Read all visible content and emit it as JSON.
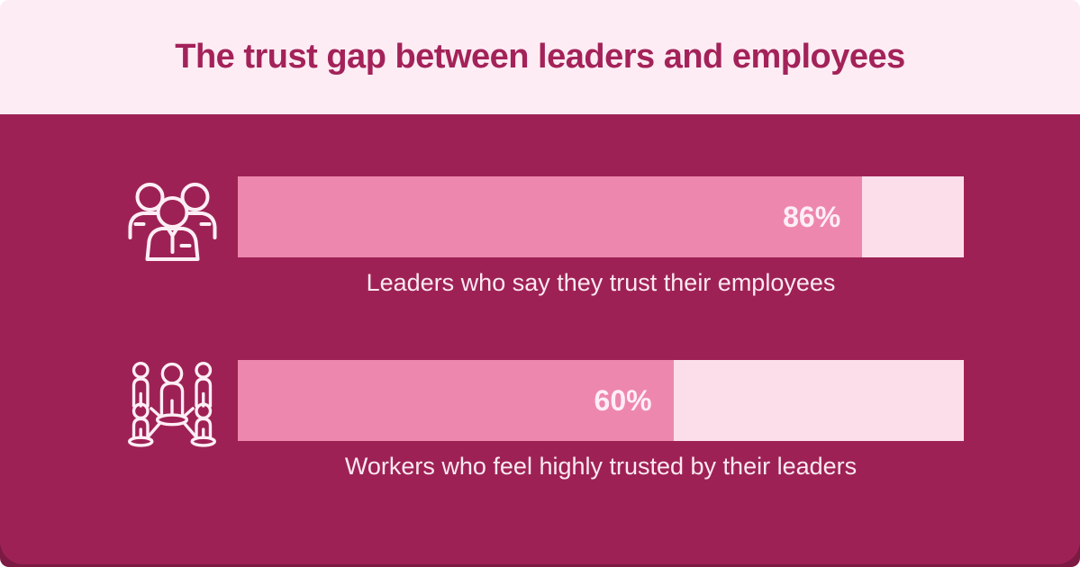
{
  "header": {
    "title": "The trust gap between leaders and employees"
  },
  "colors": {
    "header_bg": "#fdecf3",
    "panel_bg": "#9e2155",
    "title_color": "#a32259",
    "bar_fill": "#ee87ad",
    "bar_track": "#fbdeea",
    "value_text": "#fdeef5",
    "caption_text": "#fbe9f1",
    "icon_stroke": "#fdeef5",
    "bottom_strip": "#7c1a44"
  },
  "chart_data": {
    "type": "bar",
    "orientation": "horizontal",
    "title": "The trust gap between leaders and employees",
    "categories": [
      "Leaders who say they trust their employees",
      "Workers who feel highly trusted by their leaders"
    ],
    "values": [
      86,
      60
    ],
    "value_labels": [
      "86%",
      "60%"
    ],
    "xlim": [
      0,
      100
    ],
    "grid": false,
    "legend": false
  },
  "rows": [
    {
      "icon": "team-group-icon",
      "percent": 86,
      "percent_label": "86%",
      "caption": "Leaders who say they trust their employees"
    },
    {
      "icon": "people-network-icon",
      "percent": 60,
      "percent_label": "60%",
      "caption": "Workers who feel highly trusted by their leaders"
    }
  ]
}
